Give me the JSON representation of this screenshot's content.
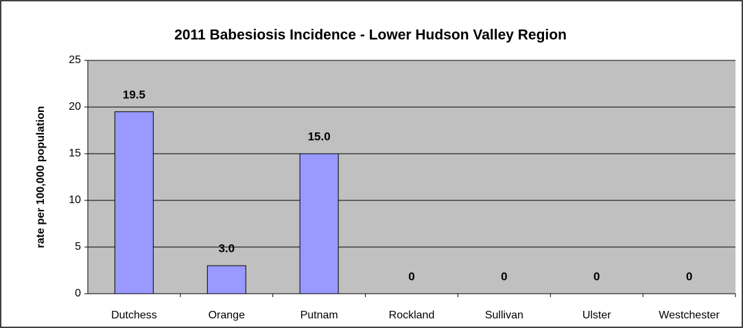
{
  "chart_data": {
    "type": "bar",
    "title": "2011 Babesiosis Incidence - Lower Hudson Valley Region",
    "y_label": "rate per 100,000 population",
    "categories": [
      "Dutchess",
      "Orange",
      "Putnam",
      "Rockland",
      "Sullivan",
      "Ulster",
      "Westchester"
    ],
    "values": [
      19.5,
      3.0,
      15.0,
      0,
      0,
      0,
      0
    ],
    "value_labels": [
      "19.5",
      "3.0",
      "15.0",
      "0",
      "0",
      "0",
      "0"
    ],
    "color": "#9999ff",
    "ylim": [
      0,
      25
    ],
    "yticks": [
      0,
      5,
      10,
      15,
      20,
      25
    ],
    "grid": true
  }
}
